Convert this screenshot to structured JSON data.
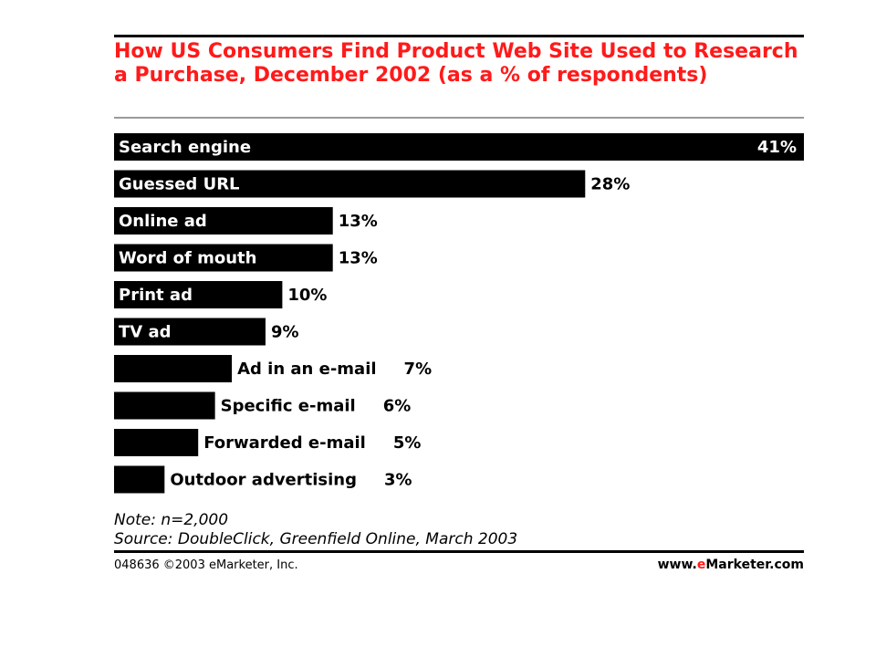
{
  "chart_data": {
    "type": "bar",
    "orientation": "horizontal",
    "title": "How US Consumers Find Product Web Site Used to Research a Purchase, December 2002 (as a % of respondents)",
    "categories": [
      "Search engine",
      "Guessed URL",
      "Online ad",
      "Word of mouth",
      "Print ad",
      "TV ad",
      "Ad in an e-mail",
      "Specific e-mail",
      "Forwarded e-mail",
      "Outdoor advertising"
    ],
    "values": [
      41,
      28,
      13,
      13,
      10,
      9,
      7,
      6,
      5,
      3
    ],
    "value_labels": [
      "41%",
      "28%",
      "13%",
      "13%",
      "10%",
      "9%",
      "7%",
      "6%",
      "5%",
      "3%"
    ],
    "xlim": [
      0,
      41
    ],
    "grid": false,
    "legend": "none",
    "colors": {
      "bar": "#000000",
      "title": "#ff1a1a"
    }
  },
  "notes": {
    "note": "Note: n=2,000",
    "source": "Source: DoubleClick, Greenfield Online, March 2003"
  },
  "footer": {
    "id": "048636 ©2003 eMarketer, Inc.",
    "brand_prefix": "www.",
    "brand_accent": "e",
    "brand_suffix": "Marketer.com"
  }
}
